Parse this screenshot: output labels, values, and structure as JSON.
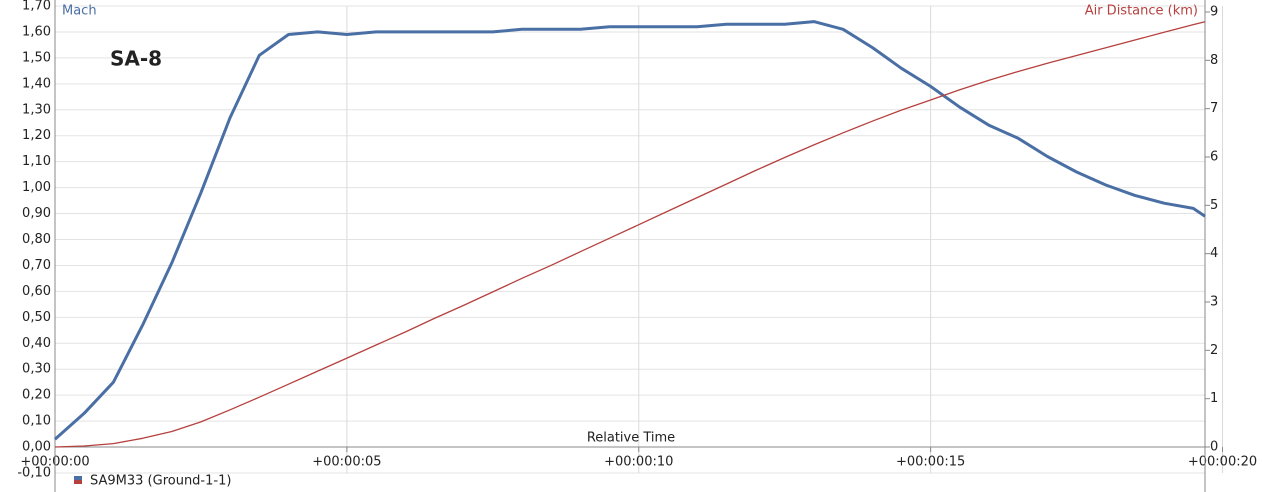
{
  "chart_data": {
    "type": "line",
    "title": "SA-8",
    "xlabel": "Relative Time",
    "ylabel": "Mach",
    "y2label": "Air Distance (km)",
    "legend": {
      "label": "SA9M33 (Ground-1-1)",
      "colors": [
        "#4a6fa5",
        "#b5413e"
      ]
    },
    "grid": true,
    "x": [
      0,
      0.5,
      1,
      1.5,
      2,
      2.5,
      3,
      3.5,
      4,
      4.5,
      5,
      5.5,
      6,
      6.5,
      7,
      7.5,
      8,
      8.5,
      9,
      9.5,
      10,
      10.5,
      11,
      11.5,
      12,
      12.5,
      13,
      13.5,
      14,
      14.5,
      15,
      15.5,
      16,
      16.5,
      17,
      17.5,
      18,
      18.5,
      19,
      19.5,
      19.7
    ],
    "xlim": [
      0,
      19.7
    ],
    "xticks": [
      {
        "value": 0,
        "label": "+00:00:00"
      },
      {
        "value": 5,
        "label": "+00:00:05"
      },
      {
        "value": 10,
        "label": "+00:00:10"
      },
      {
        "value": 15,
        "label": "+00:00:15"
      },
      {
        "value": 20,
        "label": "+00:00:20"
      }
    ],
    "ylim": [
      -0.1,
      1.7
    ],
    "yticks": [
      {
        "value": -0.1,
        "label": "-0,10"
      },
      {
        "value": 0,
        "label": "0,00"
      },
      {
        "value": 0.1,
        "label": "0,10"
      },
      {
        "value": 0.2,
        "label": "0,20"
      },
      {
        "value": 0.3,
        "label": "0,30"
      },
      {
        "value": 0.4,
        "label": "0,40"
      },
      {
        "value": 0.5,
        "label": "0,50"
      },
      {
        "value": 0.6,
        "label": "0,60"
      },
      {
        "value": 0.7,
        "label": "0,70"
      },
      {
        "value": 0.8,
        "label": "0,80"
      },
      {
        "value": 0.9,
        "label": "0,90"
      },
      {
        "value": 1.0,
        "label": "1,00"
      },
      {
        "value": 1.1,
        "label": "1,10"
      },
      {
        "value": 1.2,
        "label": "1,20"
      },
      {
        "value": 1.3,
        "label": "1,30"
      },
      {
        "value": 1.4,
        "label": "1,40"
      },
      {
        "value": 1.5,
        "label": "1,50"
      },
      {
        "value": 1.6,
        "label": "1,60"
      },
      {
        "value": 1.7,
        "label": "1,70"
      }
    ],
    "y2lim": [
      0,
      9
    ],
    "y2ticks": [
      0,
      1,
      2,
      3,
      4,
      5,
      6,
      7,
      8,
      9
    ],
    "series": [
      {
        "color": "#4a6fa5",
        "values": [
          0.03,
          0.13,
          0.25,
          0.47,
          0.71,
          0.98,
          1.27,
          1.51,
          1.59,
          1.6,
          1.59,
          1.6,
          1.6,
          1.6,
          1.6,
          1.6,
          1.61,
          1.61,
          1.61,
          1.62,
          1.62,
          1.62,
          1.62,
          1.63,
          1.63,
          1.63,
          1.64,
          1.61,
          1.54,
          1.46,
          1.39,
          1.31,
          1.24,
          1.19,
          1.12,
          1.06,
          1.01,
          0.97,
          0.94,
          0.92,
          0.89
        ]
      },
      {
        "color": "#b5413e",
        "axis": "y2",
        "values": [
          0,
          0.02,
          0.07,
          0.18,
          0.32,
          0.52,
          0.77,
          1.03,
          1.3,
          1.57,
          1.84,
          2.11,
          2.38,
          2.66,
          2.93,
          3.21,
          3.49,
          3.76,
          4.04,
          4.32,
          4.6,
          4.88,
          5.16,
          5.44,
          5.72,
          5.99,
          6.25,
          6.5,
          6.74,
          6.97,
          7.18,
          7.39,
          7.59,
          7.77,
          7.94,
          8.1,
          8.26,
          8.42,
          8.58,
          8.74,
          8.8
        ]
      }
    ]
  }
}
